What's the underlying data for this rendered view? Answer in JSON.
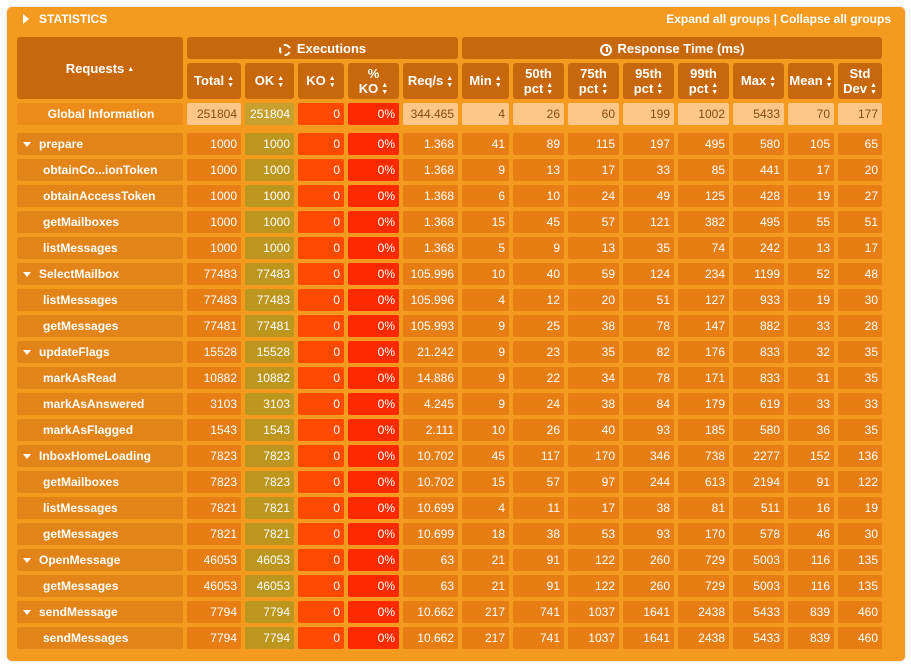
{
  "header": {
    "title": "STATISTICS",
    "expand_label": "Expand all groups",
    "separator": " | ",
    "collapse_label": "Collapse all groups"
  },
  "groups": {
    "executions": "Executions",
    "response_time": "Response Time (ms)"
  },
  "columns": {
    "requests": "Requests",
    "total": "Total",
    "ok": "OK",
    "ko": "KO",
    "pct_ko_line1": "%",
    "pct_ko_line2": "KO",
    "reqs": "Req/s",
    "min": "Min",
    "p50_line1": "50th",
    "p50_line2": "pct",
    "p75_line1": "75th",
    "p75_line2": "pct",
    "p95_line1": "95th",
    "p95_line2": "pct",
    "p99_line1": "99th",
    "p99_line2": "pct",
    "max": "Max",
    "mean": "Mean",
    "std_line1": "Std",
    "std_line2": "Dev"
  },
  "global": [
    "Global Information",
    "251804",
    "251804",
    "0",
    "0%",
    "344.465",
    "4",
    "26",
    "60",
    "199",
    "1002",
    "5433",
    "70",
    "177"
  ],
  "rows": [
    {
      "group": true,
      "cells": [
        "prepare",
        "1000",
        "1000",
        "0",
        "0%",
        "1.368",
        "41",
        "89",
        "115",
        "197",
        "495",
        "580",
        "105",
        "65"
      ]
    },
    {
      "group": false,
      "cells": [
        "obtainCo...ionToken",
        "1000",
        "1000",
        "0",
        "0%",
        "1.368",
        "9",
        "13",
        "17",
        "33",
        "85",
        "441",
        "17",
        "20"
      ]
    },
    {
      "group": false,
      "cells": [
        "obtainAccessToken",
        "1000",
        "1000",
        "0",
        "0%",
        "1.368",
        "6",
        "10",
        "24",
        "49",
        "125",
        "428",
        "19",
        "27"
      ]
    },
    {
      "group": false,
      "cells": [
        "getMailboxes",
        "1000",
        "1000",
        "0",
        "0%",
        "1.368",
        "15",
        "45",
        "57",
        "121",
        "382",
        "495",
        "55",
        "51"
      ]
    },
    {
      "group": false,
      "cells": [
        "listMessages",
        "1000",
        "1000",
        "0",
        "0%",
        "1.368",
        "5",
        "9",
        "13",
        "35",
        "74",
        "242",
        "13",
        "17"
      ]
    },
    {
      "group": true,
      "cells": [
        "SelectMailbox",
        "77483",
        "77483",
        "0",
        "0%",
        "105.996",
        "10",
        "40",
        "59",
        "124",
        "234",
        "1199",
        "52",
        "48"
      ]
    },
    {
      "group": false,
      "cells": [
        "listMessages",
        "77483",
        "77483",
        "0",
        "0%",
        "105.996",
        "4",
        "12",
        "20",
        "51",
        "127",
        "933",
        "19",
        "30"
      ]
    },
    {
      "group": false,
      "cells": [
        "getMessages",
        "77481",
        "77481",
        "0",
        "0%",
        "105.993",
        "9",
        "25",
        "38",
        "78",
        "147",
        "882",
        "33",
        "28"
      ]
    },
    {
      "group": true,
      "cells": [
        "updateFlags",
        "15528",
        "15528",
        "0",
        "0%",
        "21.242",
        "9",
        "23",
        "35",
        "82",
        "176",
        "833",
        "32",
        "35"
      ]
    },
    {
      "group": false,
      "cells": [
        "markAsRead",
        "10882",
        "10882",
        "0",
        "0%",
        "14.886",
        "9",
        "22",
        "34",
        "78",
        "171",
        "833",
        "31",
        "35"
      ]
    },
    {
      "group": false,
      "cells": [
        "markAsAnswered",
        "3103",
        "3103",
        "0",
        "0%",
        "4.245",
        "9",
        "24",
        "38",
        "84",
        "179",
        "619",
        "33",
        "33"
      ]
    },
    {
      "group": false,
      "cells": [
        "markAsFlagged",
        "1543",
        "1543",
        "0",
        "0%",
        "2.111",
        "10",
        "26",
        "40",
        "93",
        "185",
        "580",
        "36",
        "35"
      ]
    },
    {
      "group": true,
      "cells": [
        "InboxHomeLoading",
        "7823",
        "7823",
        "0",
        "0%",
        "10.702",
        "45",
        "117",
        "170",
        "346",
        "738",
        "2277",
        "152",
        "136"
      ]
    },
    {
      "group": false,
      "cells": [
        "getMailboxes",
        "7823",
        "7823",
        "0",
        "0%",
        "10.702",
        "15",
        "57",
        "97",
        "244",
        "613",
        "2194",
        "91",
        "122"
      ]
    },
    {
      "group": false,
      "cells": [
        "listMessages",
        "7821",
        "7821",
        "0",
        "0%",
        "10.699",
        "4",
        "11",
        "17",
        "38",
        "81",
        "511",
        "16",
        "19"
      ]
    },
    {
      "group": false,
      "cells": [
        "getMessages",
        "7821",
        "7821",
        "0",
        "0%",
        "10.699",
        "18",
        "38",
        "53",
        "93",
        "170",
        "578",
        "46",
        "30"
      ]
    },
    {
      "group": true,
      "cells": [
        "OpenMessage",
        "46053",
        "46053",
        "0",
        "0%",
        "63",
        "21",
        "91",
        "122",
        "260",
        "729",
        "5003",
        "116",
        "135"
      ]
    },
    {
      "group": false,
      "cells": [
        "getMessages",
        "46053",
        "46053",
        "0",
        "0%",
        "63",
        "21",
        "91",
        "122",
        "260",
        "729",
        "5003",
        "116",
        "135"
      ]
    },
    {
      "group": true,
      "cells": [
        "sendMessage",
        "7794",
        "7794",
        "0",
        "0%",
        "10.662",
        "217",
        "741",
        "1037",
        "1641",
        "2438",
        "5433",
        "839",
        "460"
      ]
    },
    {
      "group": false,
      "cells": [
        "sendMessages",
        "7794",
        "7794",
        "0",
        "0%",
        "10.662",
        "217",
        "741",
        "1037",
        "1641",
        "2438",
        "5433",
        "839",
        "460"
      ]
    }
  ],
  "colors": {
    "panel_bg": "#f39a1f",
    "header_bg": "#c8680c",
    "ok_cell": "#bd961e",
    "ko_cell": "#ff4a00",
    "pct_ko_cell": "#ff2a00"
  }
}
